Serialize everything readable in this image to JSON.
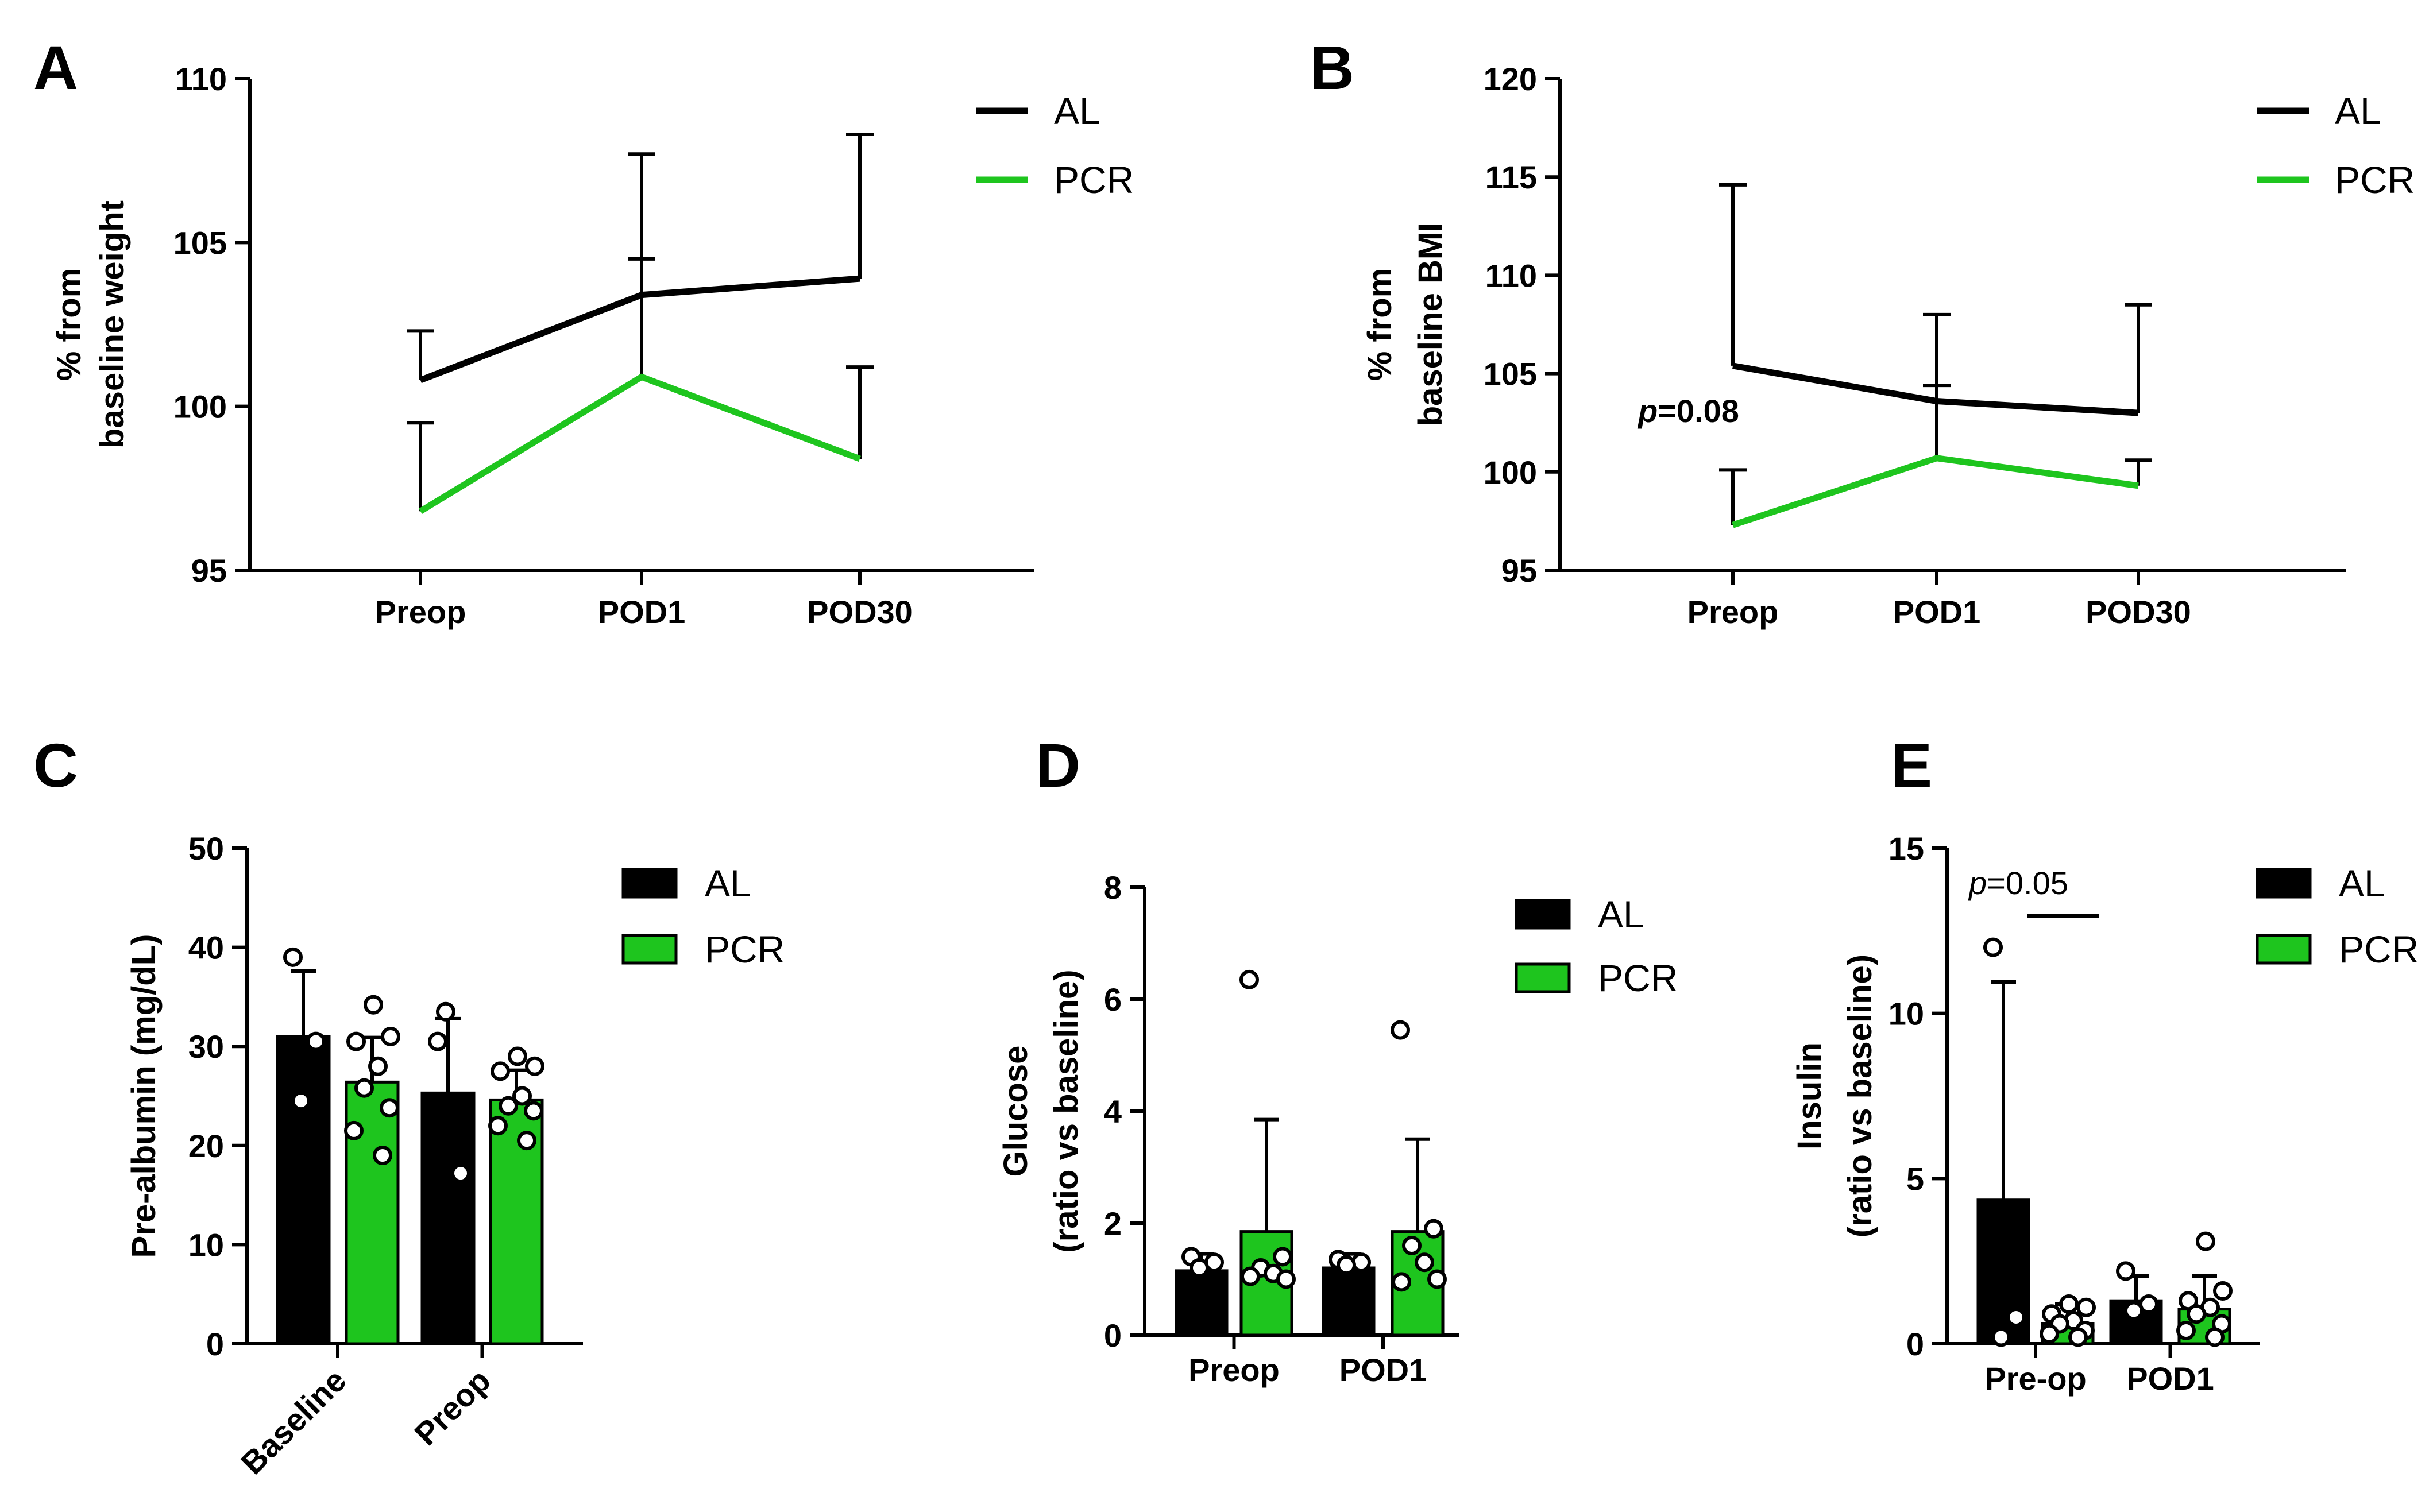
{
  "colors": {
    "al": "#000000",
    "pcr": "#1ec51e",
    "axis": "#000000",
    "dot_fill": "#ffffff"
  },
  "chart_data": [
    {
      "id": "A",
      "panel_label": "A",
      "type": "line",
      "categories": [
        "Preop",
        "POD1",
        "POD30"
      ],
      "ylabel": [
        "% from",
        "baseline weight"
      ],
      "ylim": [
        95,
        110
      ],
      "yticks": [
        95,
        100,
        105,
        110
      ],
      "series": [
        {
          "name": "AL",
          "values": [
            100.8,
            103.4,
            103.9
          ],
          "err": [
            1.5,
            4.3,
            4.4
          ]
        },
        {
          "name": "PCR",
          "values": [
            96.8,
            100.9,
            98.4
          ],
          "err": [
            2.7,
            3.6,
            2.8
          ]
        }
      ],
      "legend": [
        "AL",
        "PCR"
      ]
    },
    {
      "id": "B",
      "panel_label": "B",
      "type": "line",
      "categories": [
        "Preop",
        "POD1",
        "POD30"
      ],
      "ylabel": [
        "% from",
        "baseline BMI"
      ],
      "ylim": [
        95,
        120
      ],
      "yticks": [
        95,
        100,
        105,
        110,
        115,
        120
      ],
      "series": [
        {
          "name": "AL",
          "values": [
            105.4,
            103.6,
            103.0
          ],
          "err": [
            9.2,
            4.4,
            5.5
          ]
        },
        {
          "name": "PCR",
          "values": [
            97.3,
            100.7,
            99.3
          ],
          "err": [
            2.8,
            3.7,
            1.3
          ]
        }
      ],
      "annotation": {
        "p": "p",
        "rest": "=0.08"
      },
      "legend": [
        "AL",
        "PCR"
      ]
    },
    {
      "id": "C",
      "panel_label": "C",
      "type": "bar",
      "categories": [
        "Baseline",
        "Preop"
      ],
      "ylabel": [
        "Pre-albumin  (mg/dL)"
      ],
      "ylim": [
        0,
        50
      ],
      "yticks": [
        0,
        10,
        20,
        30,
        40,
        50
      ],
      "series": [
        {
          "name": "AL",
          "values": [
            31.0,
            25.3
          ],
          "err": [
            6.6,
            7.5
          ],
          "points": [
            [
              39.0,
              30.5,
              24.5
            ],
            [
              30.5,
              17.2,
              33.5
            ]
          ]
        },
        {
          "name": "PCR",
          "values": [
            26.4,
            24.6
          ],
          "err": [
            4.5,
            3.0
          ],
          "points": [
            [
              34.2,
              31.0,
              30.5,
              28.0,
              25.8,
              23.8,
              21.5,
              19.0
            ],
            [
              29.0,
              28.0,
              27.5,
              25.0,
              24.0,
              23.5,
              22.0,
              20.5
            ]
          ]
        }
      ],
      "legend": [
        "AL",
        "PCR"
      ]
    },
    {
      "id": "D",
      "panel_label": "D",
      "type": "bar",
      "categories": [
        "Preop",
        "POD1"
      ],
      "ylabel": [
        "Glucose",
        "(ratio vs baseline)"
      ],
      "ylim": [
        0,
        8
      ],
      "yticks": [
        0,
        2,
        4,
        6,
        8
      ],
      "series": [
        {
          "name": "AL",
          "values": [
            1.15,
            1.2
          ],
          "err": [
            0.3,
            0.25
          ],
          "points": [
            [
              1.4,
              1.3,
              1.2
            ],
            [
              1.35,
              1.3,
              1.25
            ]
          ]
        },
        {
          "name": "PCR",
          "values": [
            1.85,
            1.85
          ],
          "err": [
            2.0,
            1.65
          ],
          "points": [
            [
              6.35,
              1.4,
              1.2,
              1.1,
              1.0,
              1.05
            ],
            [
              5.45,
              1.9,
              1.6,
              1.3,
              1.0,
              0.95
            ]
          ]
        }
      ],
      "legend": [
        "AL",
        "PCR"
      ]
    },
    {
      "id": "E",
      "panel_label": "E",
      "type": "bar",
      "categories": [
        "Pre-op",
        "POD1"
      ],
      "ylabel": [
        "Insulin",
        "(ratio vs baseline)"
      ],
      "ylim": [
        0,
        15
      ],
      "yticks": [
        0,
        5,
        10,
        15
      ],
      "series": [
        {
          "name": "AL",
          "values": [
            4.35,
            1.3
          ],
          "err": [
            6.6,
            0.75
          ],
          "points": [
            [
              12.0,
              0.8,
              0.2
            ],
            [
              2.2,
              1.2,
              1.0
            ]
          ]
        },
        {
          "name": "PCR",
          "values": [
            0.6,
            1.05
          ],
          "err": [
            0.6,
            1.0
          ],
          "points": [
            [
              1.2,
              1.1,
              0.9,
              0.7,
              0.6,
              0.4,
              0.3,
              0.2
            ],
            [
              3.1,
              1.6,
              1.3,
              1.1,
              0.9,
              0.6,
              0.4,
              0.2
            ]
          ]
        }
      ],
      "annotation": {
        "p": "p",
        "rest": "=0.05"
      },
      "legend": [
        "AL",
        "PCR"
      ]
    }
  ]
}
